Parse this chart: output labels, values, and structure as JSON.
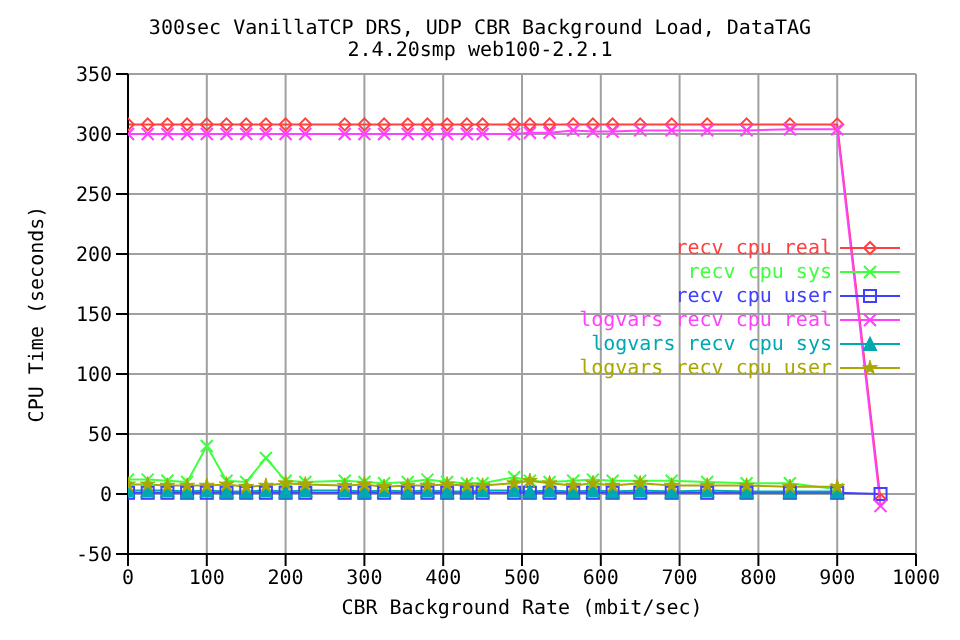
{
  "chart_data": {
    "type": "line",
    "title": "300sec VanillaTCP DRS, UDP CBR Background Load, DataTAG",
    "subtitle": "2.4.20smp web100-2.2.1",
    "xlabel": "CBR Background Rate (mbit/sec)",
    "ylabel": "CPU Time (seconds)",
    "x": [
      0,
      25,
      50,
      75,
      100,
      125,
      150,
      175,
      200,
      225,
      275,
      300,
      325,
      355,
      380,
      405,
      430,
      450,
      490,
      510,
      535,
      565,
      590,
      615,
      650,
      690,
      735,
      785,
      840,
      900,
      955
    ],
    "series": [
      {
        "name": "recv cpu real",
        "color": "#ff4040",
        "marker": "diamond",
        "values": [
          308,
          308,
          308,
          308,
          308,
          308,
          308,
          308,
          308,
          308,
          308,
          308,
          308,
          308,
          308,
          308,
          308,
          308,
          308,
          308,
          308,
          308,
          308,
          308,
          308,
          308,
          308,
          308,
          308,
          308,
          -5
        ]
      },
      {
        "name": "recv cpu sys",
        "color": "#40ff40",
        "marker": "cross",
        "values": [
          12,
          12,
          11,
          10,
          40,
          11,
          10,
          30,
          11,
          10,
          11,
          10,
          9,
          10,
          12,
          10,
          9,
          9,
          14,
          11,
          10,
          11,
          12,
          11,
          11,
          11,
          10,
          9,
          9,
          4,
          null
        ]
      },
      {
        "name": "recv cpu user",
        "color": "#4040ff",
        "marker": "square",
        "values": [
          1,
          1,
          1,
          1,
          1,
          1,
          1,
          1,
          1,
          1,
          1,
          1,
          1,
          1,
          1,
          1,
          1,
          1,
          1,
          1,
          1,
          1,
          1,
          1,
          1,
          1,
          1,
          1,
          1,
          1,
          0
        ]
      },
      {
        "name": "logvars recv cpu real",
        "color": "#ff40ff",
        "marker": "cross",
        "values": [
          300,
          300,
          300,
          300,
          300,
          300,
          300,
          300,
          300,
          300,
          300,
          300,
          300,
          300,
          300,
          300,
          300,
          300,
          300,
          301,
          301,
          303,
          302,
          302,
          303,
          303,
          303,
          303,
          304,
          304,
          -10
        ]
      },
      {
        "name": "logvars recv cpu sys",
        "color": "#00a8b0",
        "marker": "triangle",
        "values": [
          3,
          3,
          3,
          2,
          3,
          2,
          2,
          3,
          2,
          3,
          3,
          2,
          3,
          2,
          3,
          2,
          2,
          3,
          3,
          2,
          3,
          2,
          3,
          2,
          3,
          2,
          3,
          2,
          2,
          2,
          null
        ]
      },
      {
        "name": "logvars recv cpu user",
        "color": "#a8a800",
        "marker": "star",
        "values": [
          8,
          8,
          7,
          7,
          7,
          8,
          6,
          7,
          9,
          8,
          7,
          8,
          6,
          7,
          7,
          8,
          7,
          7,
          9,
          11,
          9,
          7,
          9,
          7,
          9,
          7,
          7,
          7,
          6,
          6,
          null
        ]
      }
    ],
    "xlim": [
      0,
      1000
    ],
    "xticks": [
      0,
      100,
      200,
      300,
      400,
      500,
      600,
      700,
      800,
      900,
      1000
    ],
    "ylim": [
      -50,
      350
    ],
    "yticks": [
      -50,
      0,
      50,
      100,
      150,
      200,
      250,
      300,
      350
    ],
    "grid": true,
    "legend": "right"
  }
}
